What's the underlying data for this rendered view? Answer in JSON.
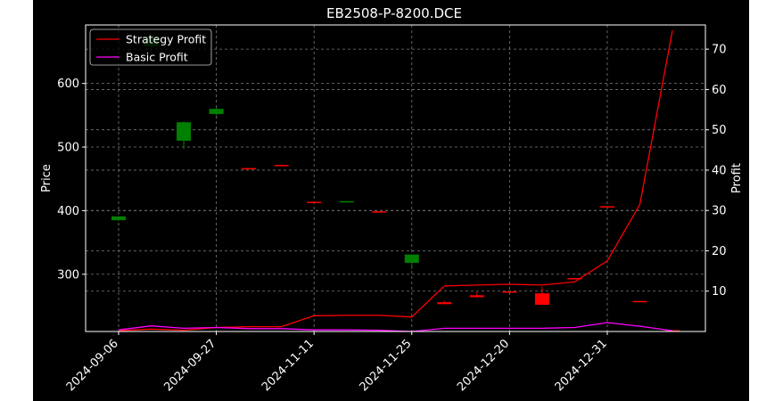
{
  "chart_data": {
    "type": "candlestick+line",
    "title": "EB2508-P-8200.DCE",
    "xlabel": "",
    "ylabel_left": "Price",
    "ylabel_right": "Profit",
    "x_tick_labels": [
      "2024-09-06",
      "2024-09-27",
      "2024-11-11",
      "2024-11-25",
      "2024-12-20",
      "2024-12-31"
    ],
    "y_left_ticks": [
      300,
      400,
      500,
      600
    ],
    "y_right_ticks": [
      10,
      20,
      30,
      40,
      50,
      60,
      70
    ],
    "y_left_range": [
      210,
      692
    ],
    "y_right_range": [
      0,
      76
    ],
    "grid": true,
    "legend_position": "upper-left",
    "up_color": "#008000",
    "down_color": "#ff0000",
    "candles": [
      {
        "open": 385,
        "high": 391,
        "low": 384,
        "close": 391
      },
      {
        "open": 658,
        "high": 680,
        "low": 645,
        "close": 675
      },
      {
        "open": 510,
        "high": 540,
        "low": 497,
        "close": 539
      },
      {
        "open": 552,
        "high": 562,
        "low": 550,
        "close": 560
      },
      {
        "open": 467,
        "high": 467,
        "low": 466,
        "close": 466
      },
      {
        "open": 472,
        "high": 472,
        "low": 471,
        "close": 471
      },
      {
        "open": 414,
        "high": 414,
        "low": 413,
        "close": 413
      },
      {
        "open": 414,
        "high": 415,
        "low": 414,
        "close": 415
      },
      {
        "open": 399,
        "high": 399,
        "low": 398,
        "close": 398
      },
      {
        "open": 318,
        "high": 331,
        "low": 308,
        "close": 331
      },
      {
        "open": 256,
        "high": 258,
        "low": 253,
        "close": 253
      },
      {
        "open": 267,
        "high": 272,
        "low": 263,
        "close": 264
      },
      {
        "open": 273,
        "high": 273,
        "low": 272,
        "close": 272
      },
      {
        "open": 270,
        "high": 280,
        "low": 252,
        "close": 252
      },
      {
        "open": 294,
        "high": 294,
        "low": 293,
        "close": 293
      },
      {
        "open": 407,
        "high": 407,
        "low": 406,
        "close": 406
      },
      {
        "open": 258,
        "high": 258,
        "low": 257,
        "close": 257
      },
      {
        "open": 212,
        "high": 212,
        "low": 211,
        "close": 211
      }
    ],
    "series": [
      {
        "name": "Strategy Profit",
        "color": "#ff0000",
        "values": [
          0.2,
          0.6,
          0.3,
          1.0,
          1.2,
          1.2,
          3.9,
          4.0,
          4.0,
          3.6,
          11.3,
          11.5,
          11.7,
          11.5,
          12.3,
          17.5,
          31.5,
          74.6
        ]
      },
      {
        "name": "Basic Profit",
        "color": "#ff00ff",
        "values": [
          0.4,
          1.4,
          0.8,
          1.0,
          0.7,
          0.7,
          0.4,
          0.4,
          0.3,
          0.0,
          0.8,
          0.8,
          0.8,
          0.8,
          1.0,
          2.2,
          1.3,
          0.2
        ]
      }
    ]
  }
}
